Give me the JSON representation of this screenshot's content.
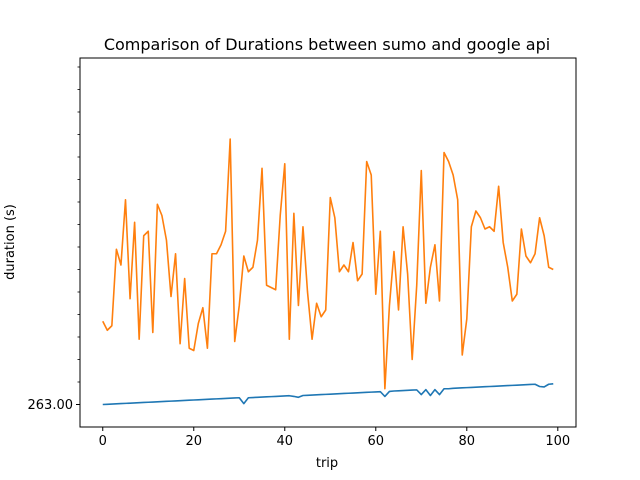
{
  "chart_data": {
    "type": "line",
    "title": "Comparison of Durations between sumo and google api",
    "xlabel": "trip",
    "ylabel": "duration (s)",
    "xlim": [
      -5,
      104
    ],
    "ylim": [
      258,
      340
    ],
    "x_ticks": [
      0,
      20,
      40,
      60,
      80,
      100
    ],
    "y_tick_label_values": [
      263
    ],
    "y_tick_label_text": [
      "263.00"
    ],
    "y_minor_ticks": [
      263,
      268,
      273,
      278,
      283,
      288,
      293,
      298,
      303,
      308,
      313,
      318,
      323,
      328,
      333,
      338
    ],
    "grid": false,
    "legend": "none",
    "series": [
      {
        "color": "#1f77b4",
        "x": [
          0,
          1,
          2,
          3,
          4,
          5,
          6,
          7,
          8,
          9,
          10,
          11,
          12,
          13,
          14,
          15,
          16,
          17,
          18,
          19,
          20,
          21,
          22,
          23,
          24,
          25,
          26,
          27,
          28,
          29,
          30,
          31,
          32,
          33,
          34,
          35,
          36,
          37,
          38,
          39,
          40,
          41,
          42,
          43,
          44,
          45,
          46,
          47,
          48,
          49,
          50,
          51,
          52,
          53,
          54,
          55,
          56,
          57,
          58,
          59,
          60,
          61,
          62,
          63,
          64,
          65,
          66,
          67,
          68,
          69,
          70,
          71,
          72,
          73,
          74,
          75,
          76,
          77,
          78,
          79,
          80,
          81,
          82,
          83,
          84,
          85,
          86,
          87,
          88,
          89,
          90,
          91,
          92,
          93,
          94,
          95,
          96,
          97,
          98,
          99
        ],
        "values": [
          263.0,
          263.05,
          263.1,
          263.15,
          263.2,
          263.25,
          263.3,
          263.35,
          263.4,
          263.45,
          263.5,
          263.55,
          263.6,
          263.65,
          263.7,
          263.75,
          263.8,
          263.85,
          263.9,
          263.95,
          264.0,
          264.05,
          264.1,
          264.15,
          264.2,
          264.25,
          264.3,
          264.35,
          264.4,
          264.45,
          264.5,
          263.2,
          264.5,
          264.55,
          264.6,
          264.65,
          264.7,
          264.75,
          264.8,
          264.85,
          264.9,
          264.95,
          264.8,
          264.6,
          265.0,
          265.05,
          265.1,
          265.15,
          265.2,
          265.25,
          265.3,
          265.35,
          265.4,
          265.45,
          265.5,
          265.55,
          265.6,
          265.65,
          265.7,
          265.75,
          265.8,
          265.85,
          264.8,
          265.9,
          266.0,
          266.05,
          266.1,
          266.15,
          266.2,
          266.25,
          265.2,
          266.3,
          265.0,
          266.3,
          265.2,
          266.5,
          266.5,
          266.6,
          266.65,
          266.7,
          266.75,
          266.8,
          266.85,
          266.9,
          266.95,
          267.0,
          267.05,
          267.1,
          267.15,
          267.2,
          267.25,
          267.3,
          267.35,
          267.4,
          267.45,
          267.5,
          267.0,
          266.9,
          267.5,
          267.6
        ]
      },
      {
        "color": "#ff7f0e",
        "x": [
          0,
          1,
          2,
          3,
          4,
          5,
          6,
          7,
          8,
          9,
          10,
          11,
          12,
          13,
          14,
          15,
          16,
          17,
          18,
          19,
          20,
          21,
          22,
          23,
          24,
          25,
          26,
          27,
          28,
          29,
          30,
          31,
          32,
          33,
          34,
          35,
          36,
          37,
          38,
          39,
          40,
          41,
          42,
          43,
          44,
          45,
          46,
          47,
          48,
          49,
          50,
          51,
          52,
          53,
          54,
          55,
          56,
          57,
          58,
          59,
          60,
          61,
          62,
          63,
          64,
          65,
          66,
          67,
          68,
          69,
          70,
          71,
          72,
          73,
          74,
          75,
          76,
          77,
          78,
          79,
          80,
          81,
          82,
          83,
          84,
          85,
          86,
          87,
          88,
          89,
          90,
          91,
          92,
          93,
          94,
          95,
          96,
          97,
          98,
          99
        ],
        "values": [
          281.5,
          279.5,
          280.5,
          297.5,
          294.0,
          308.5,
          286.5,
          303.5,
          277.5,
          300.5,
          301.5,
          279.0,
          307.5,
          305.0,
          299.5,
          287.0,
          296.5,
          276.5,
          291.0,
          275.5,
          275.0,
          281.0,
          284.5,
          275.5,
          296.5,
          296.5,
          298.5,
          301.5,
          322.0,
          277.0,
          285.0,
          296.0,
          292.5,
          293.5,
          299.5,
          315.5,
          289.5,
          289.0,
          288.5,
          305.0,
          316.5,
          277.5,
          305.5,
          285.0,
          302.5,
          288.0,
          277.5,
          285.5,
          282.5,
          284.0,
          309.0,
          304.5,
          292.5,
          294.0,
          292.5,
          299.0,
          290.5,
          292.0,
          317.0,
          314.0,
          287.5,
          301.5,
          266.5,
          285.0,
          297.0,
          284.0,
          302.5,
          292.0,
          273.0,
          289.5,
          315.0,
          285.5,
          293.5,
          298.5,
          286.0,
          319.0,
          317.0,
          314.0,
          308.5,
          274.0,
          282.0,
          302.5,
          306.0,
          304.5,
          302.0,
          302.5,
          301.5,
          311.5,
          299.0,
          293.5,
          286.0,
          287.5,
          302.0,
          296.0,
          294.5,
          296.5,
          304.5,
          300.5,
          293.5,
          293.0
        ]
      }
    ]
  }
}
